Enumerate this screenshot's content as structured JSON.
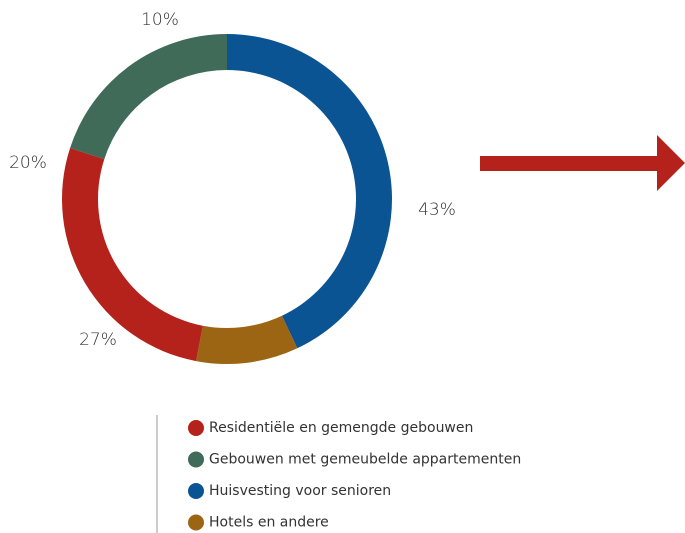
{
  "chart_data": {
    "type": "donut",
    "categories": [
      "Residentiële en gemengde gebouwen",
      "Gebouwen met gemeubelde appartementen",
      "Huisvesting voor senioren",
      "Hotels en andere"
    ],
    "values": [
      27,
      20,
      43,
      10
    ],
    "value_labels": [
      "27%",
      "20%",
      "43%",
      "10%"
    ],
    "colors": [
      "#b5221b",
      "#3f6b58",
      "#0a5494",
      "#9c6514"
    ],
    "legend": "bottom"
  }
}
